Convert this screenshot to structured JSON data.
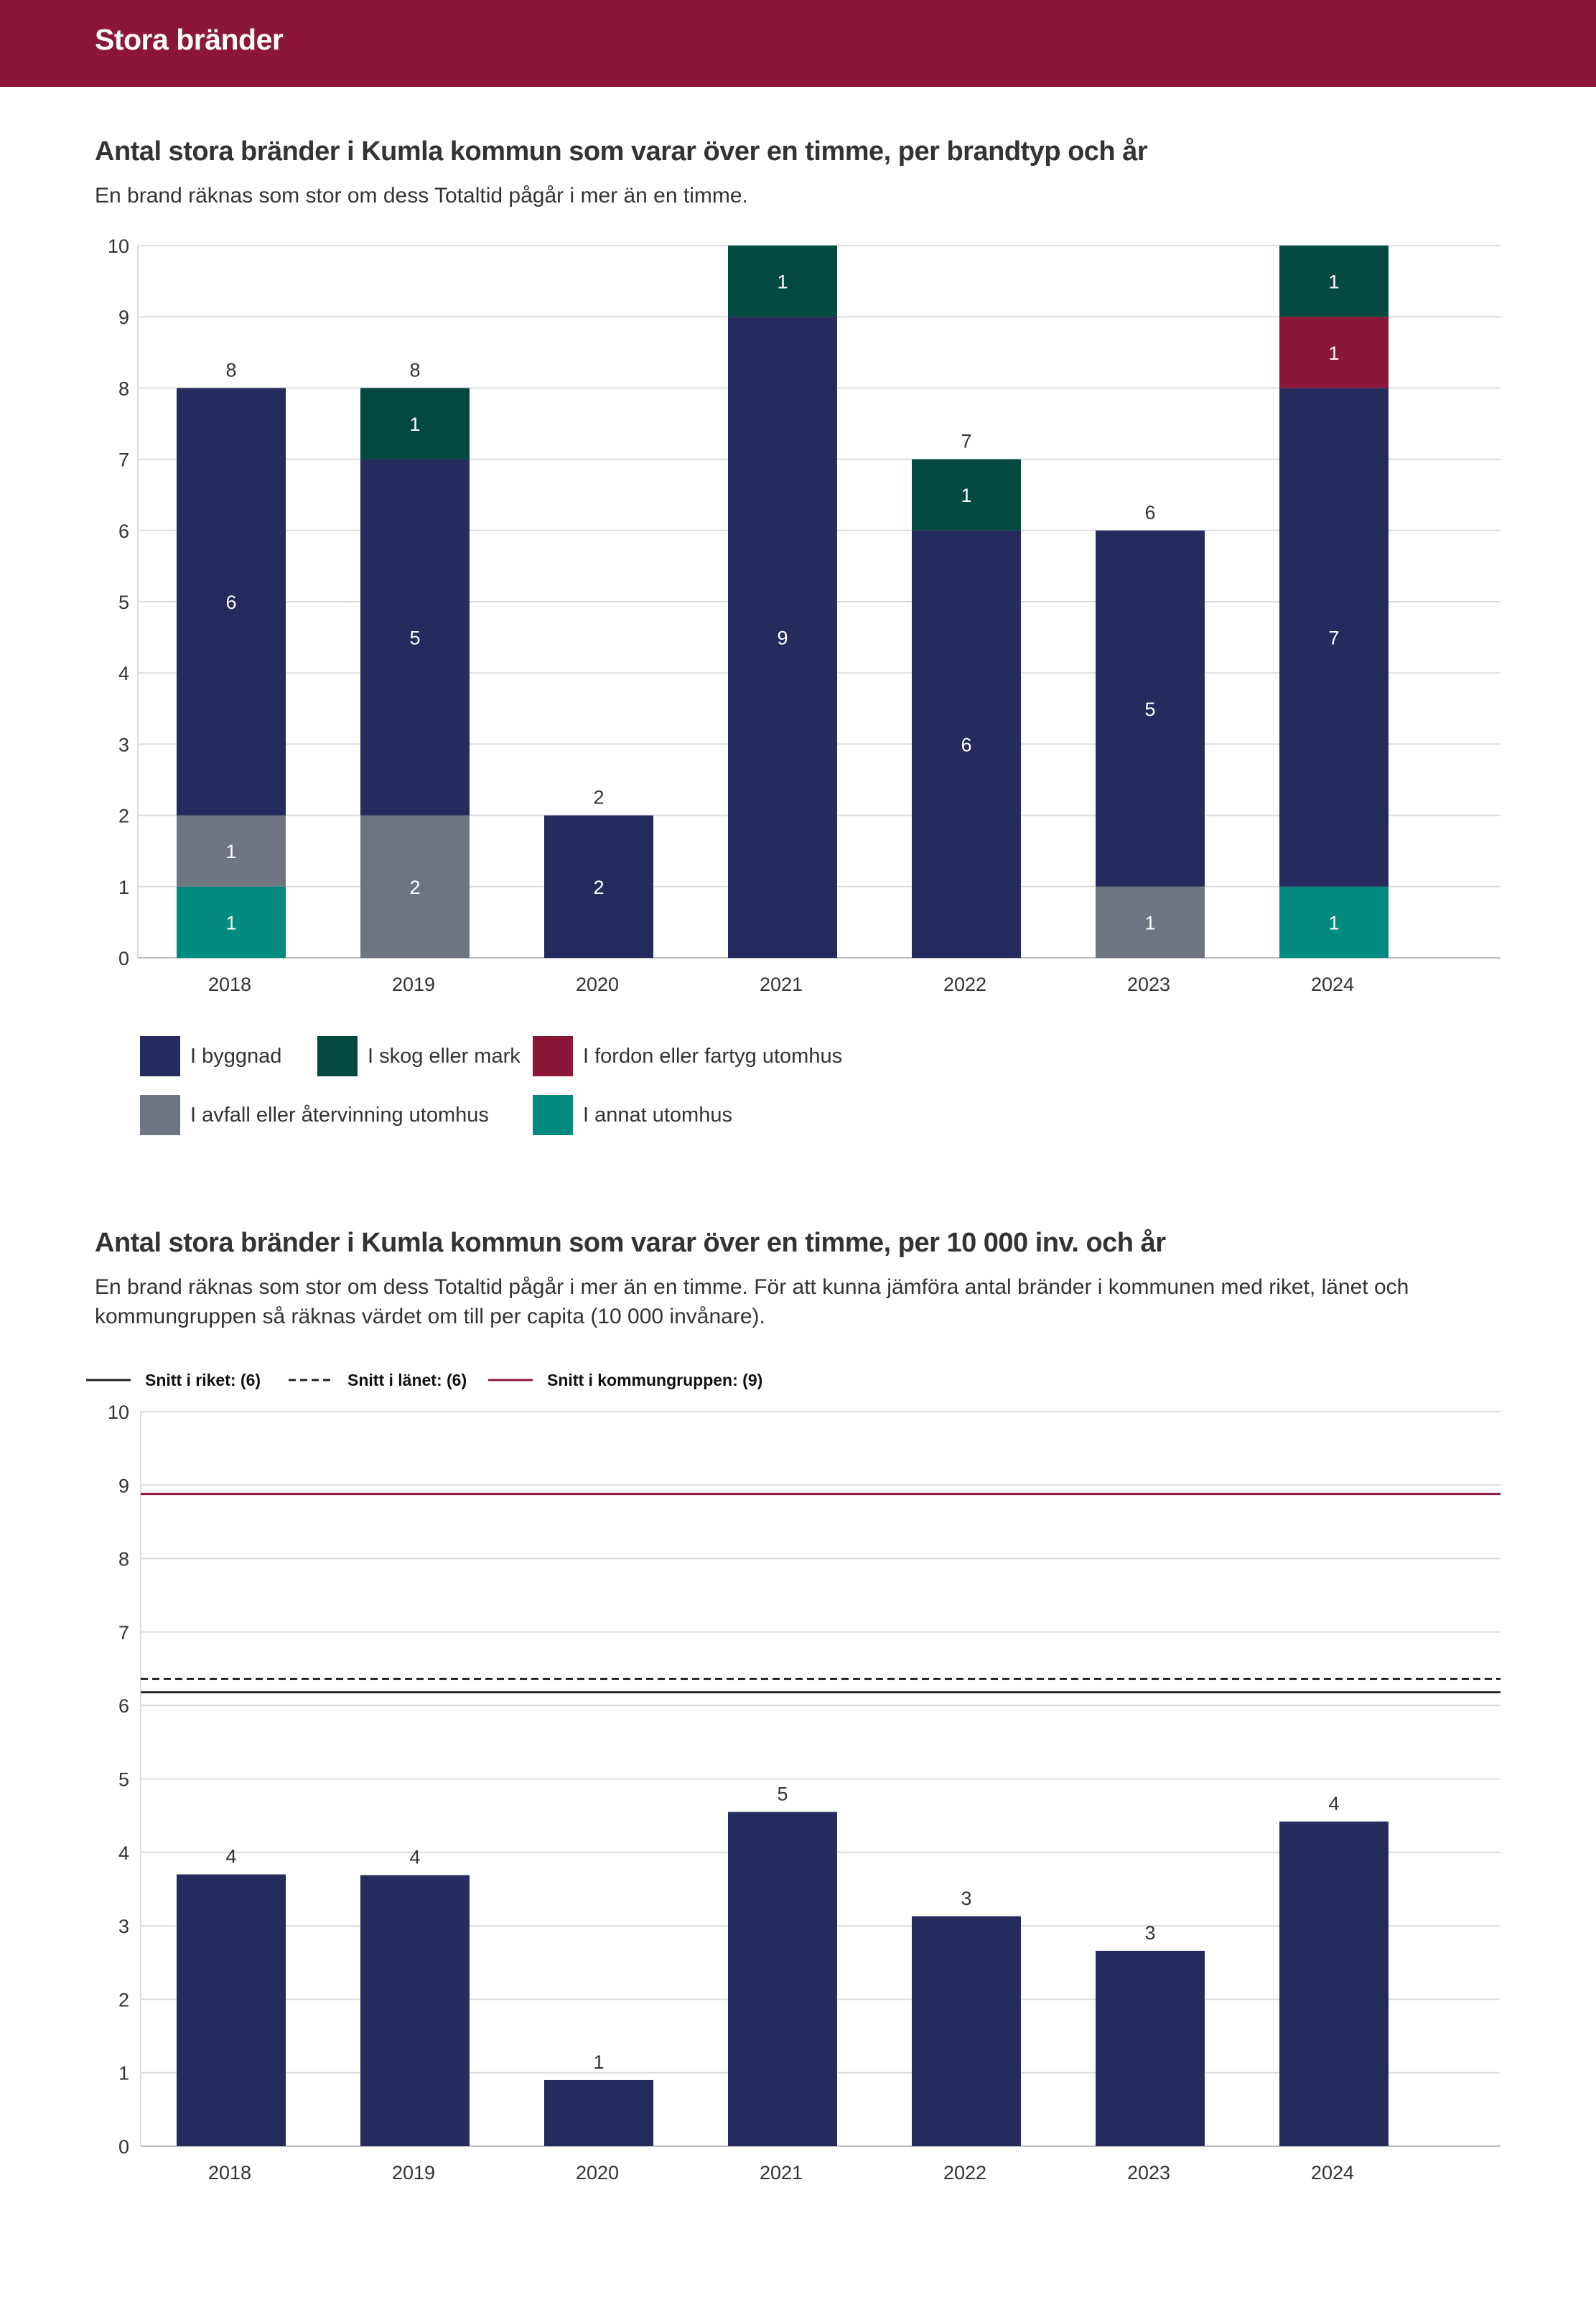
{
  "header": {
    "title": "Stora bränder"
  },
  "colors": {
    "banner": "#8c1638",
    "byggnad": "#252c5d",
    "skog": "#03493f",
    "fordon": "#8c1638",
    "avfall": "#6f7580",
    "annat": "#008a80",
    "grid": "#dcdcdc"
  },
  "chart1": {
    "title": "Antal stora bränder i Kumla kommun som varar över en timme, per brandtyp och år",
    "subtitle": "En brand räknas som stor om dess Totaltid pågår i mer än en timme."
  },
  "chart2": {
    "title": "Antal stora bränder i Kumla kommun som varar över en timme, per 10 000 inv. och år",
    "subtitle": "En brand räknas som stor om dess Totaltid pågår i mer än en timme. För att kunna jämföra antal bränder i kommunen med riket, länet och kommungruppen så räknas värdet om till per capita (10 000 invånare)."
  },
  "chart_data": [
    {
      "type": "bar",
      "stacked": true,
      "title": "Antal stora bränder i Kumla kommun som varar över en timme, per brandtyp och år",
      "categories": [
        "2018",
        "2019",
        "2020",
        "2021",
        "2022",
        "2023",
        "2024"
      ],
      "series": [
        {
          "name": "I annat utomhus",
          "key": "annat",
          "values": [
            1,
            0,
            0,
            0,
            0,
            0,
            1
          ]
        },
        {
          "name": "I avfall eller återvinning utomhus",
          "key": "avfall",
          "values": [
            1,
            2,
            0,
            0,
            0,
            1,
            0
          ]
        },
        {
          "name": "I byggnad",
          "key": "byggnad",
          "values": [
            6,
            5,
            2,
            9,
            6,
            5,
            7
          ]
        },
        {
          "name": "I fordon eller fartyg utomhus",
          "key": "fordon",
          "values": [
            0,
            0,
            0,
            0,
            0,
            0,
            1
          ]
        },
        {
          "name": "I skog eller mark",
          "key": "skog",
          "values": [
            0,
            1,
            0,
            1,
            1,
            0,
            1
          ]
        }
      ],
      "totals": [
        8,
        8,
        2,
        "",
        7,
        6,
        ""
      ],
      "legend_order": [
        "I byggnad",
        "I skog eller mark",
        "I fordon eller fartyg utomhus",
        "I avfall eller återvinning utomhus",
        "I annat utomhus"
      ],
      "yticks": [
        "0",
        "1",
        "2",
        "3",
        "4",
        "5",
        "6",
        "7",
        "8",
        "9",
        "10"
      ],
      "ylim": [
        0,
        10
      ]
    },
    {
      "type": "bar",
      "title": "Antal stora bränder i Kumla kommun som varar över en timme, per 10 000 inv. och år",
      "categories": [
        "2018",
        "2019",
        "2020",
        "2021",
        "2022",
        "2023",
        "2024"
      ],
      "values": [
        3.7,
        3.69,
        0.9,
        4.55,
        3.13,
        2.66,
        4.42
      ],
      "value_labels": [
        "4",
        "4",
        "1",
        "5",
        "3",
        "3",
        "4"
      ],
      "yticks": [
        "0",
        "1",
        "2",
        "3",
        "4",
        "5",
        "6",
        "7",
        "8",
        "9",
        "10"
      ],
      "ylim": [
        0,
        10
      ],
      "reference_lines": [
        {
          "name": "Snitt i riket:",
          "label": "(6)",
          "value": 6.18,
          "style": "solid",
          "color": "#222222"
        },
        {
          "name": "Snitt i länet:",
          "label": "(6)",
          "value": 6.36,
          "style": "dashed",
          "color": "#222222"
        },
        {
          "name": "Snitt i kommungruppen:",
          "label": "(9)",
          "value": 8.88,
          "style": "solid",
          "color": "#8c1638"
        }
      ]
    }
  ]
}
